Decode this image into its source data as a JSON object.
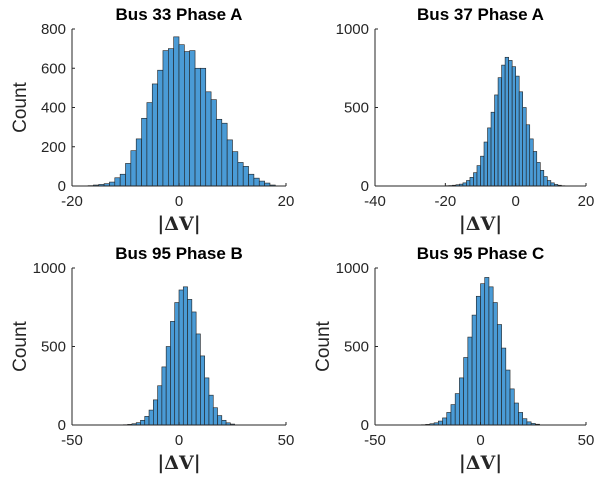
{
  "chart_data": [
    {
      "type": "bar",
      "title": "Bus 33 Phase A",
      "xlabel": "|ΔV|",
      "ylabel": "Count",
      "xlim": [
        -20,
        20
      ],
      "ylim": [
        0,
        800
      ],
      "xticks": [
        "-20",
        "0",
        "20"
      ],
      "yticks": [
        "0",
        "200",
        "400",
        "600",
        "800"
      ],
      "bin_width": 1,
      "bins_start": -17,
      "values": [
        2,
        5,
        8,
        12,
        20,
        42,
        60,
        115,
        180,
        240,
        345,
        425,
        520,
        590,
        690,
        700,
        760,
        720,
        685,
        690,
        600,
        600,
        480,
        440,
        340,
        320,
        235,
        175,
        120,
        100,
        60,
        40,
        25,
        15,
        5
      ]
    },
    {
      "type": "bar",
      "title": "Bus 37 Phase A",
      "xlabel": "|ΔV|",
      "ylabel": "",
      "xlim": [
        -40,
        20
      ],
      "ylim": [
        0,
        1000
      ],
      "xticks": [
        "-40",
        "-20",
        "0",
        "20"
      ],
      "yticks": [
        "0",
        "500",
        "1000"
      ],
      "bin_width": 1,
      "bins_start": -20,
      "values": [
        2,
        3,
        5,
        8,
        12,
        20,
        35,
        55,
        85,
        130,
        190,
        280,
        370,
        470,
        580,
        690,
        770,
        820,
        800,
        760,
        700,
        600,
        500,
        390,
        300,
        220,
        150,
        100,
        60,
        35,
        20,
        10,
        5,
        2
      ]
    },
    {
      "type": "bar",
      "title": "Bus 95 Phase B",
      "xlabel": "|ΔV|",
      "ylabel": "Count",
      "xlim": [
        -50,
        50
      ],
      "ylim": [
        0,
        1000
      ],
      "xticks": [
        "-50",
        "0",
        "50"
      ],
      "yticks": [
        "0",
        "500",
        "1000"
      ],
      "bin_width": 2,
      "bins_start": -26,
      "values": [
        2,
        4,
        8,
        15,
        30,
        55,
        95,
        160,
        250,
        370,
        500,
        660,
        780,
        860,
        880,
        800,
        720,
        580,
        440,
        300,
        190,
        110,
        60,
        30,
        14,
        6
      ]
    },
    {
      "type": "bar",
      "title": "Bus 95 Phase C",
      "xlabel": "|ΔV|",
      "ylabel": "Count",
      "xlim": [
        -50,
        50
      ],
      "ylim": [
        0,
        1000
      ],
      "xticks": [
        "-50",
        "0",
        "50"
      ],
      "yticks": [
        "0",
        "500",
        "1000"
      ],
      "bin_width": 2,
      "bins_start": -28,
      "values": [
        2,
        4,
        8,
        14,
        25,
        45,
        80,
        130,
        200,
        300,
        430,
        560,
        700,
        820,
        900,
        940,
        880,
        780,
        640,
        490,
        350,
        230,
        140,
        80,
        40,
        20,
        10,
        5
      ]
    }
  ]
}
